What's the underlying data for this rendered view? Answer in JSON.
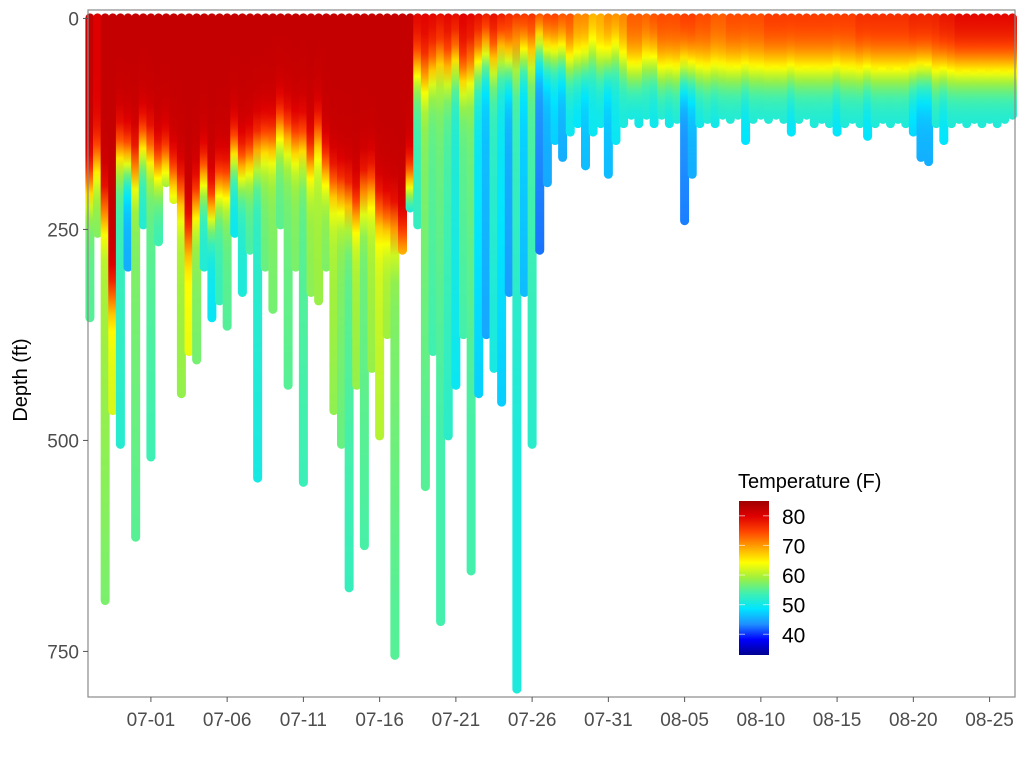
{
  "chart_data": {
    "type": "scatter",
    "title": "",
    "xlabel": "",
    "ylabel": "Depth (ft)",
    "y_reversed": true,
    "ylim": [
      -10,
      804
    ],
    "xlim": [
      "06-26T21",
      "08-26T16"
    ],
    "grid": false,
    "x_ticks": [
      "07-01",
      "07-06",
      "07-11",
      "07-16",
      "07-21",
      "07-26",
      "07-31",
      "08-05",
      "08-10",
      "08-15",
      "08-20",
      "08-25"
    ],
    "y_ticks": [
      0,
      250,
      500,
      750
    ],
    "legend": {
      "title": "Temperature (F)",
      "placement": "bottom-right",
      "ticks": [
        80,
        70,
        60,
        50,
        40
      ],
      "limits": [
        33,
        85
      ],
      "colors": [
        "#00008f",
        "#0000ff",
        "#1e90ff",
        "#00e5ff",
        "#40f0b0",
        "#9ef040",
        "#ffff00",
        "#ffa500",
        "#ff4500",
        "#e00000",
        "#a00000"
      ]
    },
    "cast_fields": [
      "date",
      "max_depth_ft",
      "surface_temp_F",
      "thermocline_depth_ft",
      "bottom_temp_F"
    ],
    "casts": [
      [
        "06-27T00",
        360,
        82,
        200,
        56
      ],
      [
        "06-27T12",
        260,
        80,
        170,
        58
      ],
      [
        "06-28T00",
        695,
        82,
        230,
        60
      ],
      [
        "06-28T12",
        470,
        82,
        330,
        63
      ],
      [
        "06-29T00",
        510,
        82,
        160,
        54
      ],
      [
        "06-29T12",
        300,
        82,
        170,
        46
      ],
      [
        "06-30T00",
        620,
        82,
        180,
        58
      ],
      [
        "06-30T12",
        250,
        82,
        150,
        52
      ],
      [
        "07-01T00",
        525,
        82,
        160,
        56
      ],
      [
        "07-01T12",
        270,
        82,
        180,
        54
      ],
      [
        "07-02T00",
        200,
        82,
        170,
        55
      ],
      [
        "07-02T12",
        220,
        82,
        190,
        58
      ],
      [
        "07-03T00",
        450,
        82,
        210,
        60
      ],
      [
        "07-03T12",
        400,
        82,
        260,
        64
      ],
      [
        "07-04T00",
        410,
        82,
        220,
        58
      ],
      [
        "07-04T12",
        300,
        82,
        190,
        52
      ],
      [
        "07-05T00",
        360,
        82,
        230,
        50
      ],
      [
        "07-05T12",
        340,
        82,
        200,
        54
      ],
      [
        "07-06T00",
        370,
        82,
        200,
        56
      ],
      [
        "07-06T12",
        260,
        82,
        160,
        50
      ],
      [
        "07-07T00",
        330,
        82,
        180,
        52
      ],
      [
        "07-07T12",
        280,
        82,
        170,
        55
      ],
      [
        "07-08T00",
        550,
        82,
        160,
        53
      ],
      [
        "07-08T12",
        300,
        82,
        150,
        57
      ],
      [
        "07-09T00",
        350,
        82,
        150,
        58
      ],
      [
        "07-09T12",
        250,
        82,
        130,
        56
      ],
      [
        "07-10T00",
        440,
        82,
        140,
        57
      ],
      [
        "07-10T12",
        300,
        82,
        150,
        58
      ],
      [
        "07-11T00",
        555,
        82,
        150,
        56
      ],
      [
        "07-11T12",
        330,
        82,
        170,
        59
      ],
      [
        "07-12T00",
        340,
        82,
        140,
        60
      ],
      [
        "07-12T12",
        300,
        82,
        180,
        58
      ],
      [
        "07-13T00",
        470,
        82,
        200,
        60
      ],
      [
        "07-13T12",
        510,
        82,
        210,
        58
      ],
      [
        "07-14T00",
        680,
        82,
        220,
        56
      ],
      [
        "07-14T12",
        440,
        82,
        230,
        60
      ],
      [
        "07-15T00",
        630,
        82,
        210,
        57
      ],
      [
        "07-15T12",
        420,
        82,
        200,
        60
      ],
      [
        "07-16T00",
        500,
        82,
        230,
        62
      ],
      [
        "07-16T12",
        380,
        82,
        240,
        60
      ],
      [
        "07-17T00",
        760,
        82,
        250,
        58
      ],
      [
        "07-17T12",
        280,
        82,
        260,
        64
      ],
      [
        "07-18T00",
        230,
        82,
        200,
        45
      ],
      [
        "07-18T12",
        250,
        80,
        60,
        54
      ],
      [
        "07-19T00",
        560,
        80,
        70,
        58
      ],
      [
        "07-19T12",
        400,
        80,
        60,
        56
      ],
      [
        "07-20T00",
        720,
        80,
        50,
        57
      ],
      [
        "07-20T12",
        500,
        80,
        60,
        55
      ],
      [
        "07-21T00",
        440,
        80,
        50,
        52
      ],
      [
        "07-21T12",
        380,
        80,
        70,
        56
      ],
      [
        "07-22T00",
        660,
        80,
        60,
        57
      ],
      [
        "07-22T12",
        450,
        80,
        50,
        50
      ],
      [
        "07-23T00",
        380,
        80,
        40,
        47
      ],
      [
        "07-23T12",
        420,
        80,
        50,
        53
      ],
      [
        "07-24T00",
        460,
        80,
        40,
        50
      ],
      [
        "07-24T12",
        330,
        78,
        50,
        46
      ],
      [
        "07-25T00",
        800,
        78,
        40,
        54
      ],
      [
        "07-25T12",
        330,
        78,
        40,
        48
      ],
      [
        "07-26T00",
        510,
        78,
        40,
        55
      ],
      [
        "07-26T12",
        280,
        78,
        30,
        44
      ],
      [
        "07-27T00",
        200,
        77,
        40,
        46
      ],
      [
        "07-27T12",
        150,
        77,
        40,
        48
      ],
      [
        "07-28T00",
        170,
        76,
        40,
        46
      ],
      [
        "07-28T12",
        140,
        75,
        50,
        50
      ],
      [
        "07-29T00",
        130,
        72,
        50,
        49
      ],
      [
        "07-29T12",
        180,
        72,
        50,
        47
      ],
      [
        "07-30T00",
        140,
        70,
        40,
        50
      ],
      [
        "07-30T12",
        130,
        70,
        50,
        50
      ],
      [
        "07-31T00",
        190,
        72,
        50,
        47
      ],
      [
        "07-31T12",
        150,
        72,
        40,
        50
      ],
      [
        "08-01T00",
        130,
        72,
        50,
        51
      ],
      [
        "08-01T12",
        120,
        74,
        60,
        50
      ],
      [
        "08-02T00",
        130,
        74,
        60,
        50
      ],
      [
        "08-02T12",
        120,
        74,
        50,
        51
      ],
      [
        "08-03T00",
        130,
        75,
        50,
        50
      ],
      [
        "08-03T12",
        120,
        75,
        60,
        51
      ],
      [
        "08-04T00",
        130,
        75,
        60,
        50
      ],
      [
        "08-04T12",
        125,
        75,
        60,
        51
      ],
      [
        "08-05T00",
        245,
        76,
        60,
        44
      ],
      [
        "08-05T12",
        190,
        76,
        60,
        46
      ],
      [
        "08-06T00",
        130,
        75,
        60,
        50
      ],
      [
        "08-06T12",
        125,
        75,
        60,
        51
      ],
      [
        "08-07T00",
        130,
        74,
        60,
        50
      ],
      [
        "08-07T12",
        120,
        74,
        60,
        51
      ],
      [
        "08-08T00",
        125,
        75,
        60,
        51
      ],
      [
        "08-08T12",
        120,
        75,
        60,
        51
      ],
      [
        "08-09T00",
        150,
        75,
        60,
        49
      ],
      [
        "08-09T12",
        125,
        75,
        60,
        51
      ],
      [
        "08-10T00",
        120,
        75,
        60,
        51
      ],
      [
        "08-10T12",
        125,
        76,
        60,
        51
      ],
      [
        "08-11T00",
        120,
        76,
        60,
        51
      ],
      [
        "08-11T12",
        125,
        76,
        60,
        51
      ],
      [
        "08-12T00",
        140,
        76,
        60,
        49
      ],
      [
        "08-12T12",
        125,
        76,
        60,
        51
      ],
      [
        "08-13T00",
        120,
        76,
        60,
        51
      ],
      [
        "08-13T12",
        130,
        76,
        60,
        51
      ],
      [
        "08-14T00",
        125,
        76,
        60,
        51
      ],
      [
        "08-14T12",
        130,
        76,
        60,
        51
      ],
      [
        "08-15T00",
        140,
        76,
        60,
        49
      ],
      [
        "08-15T12",
        130,
        76,
        60,
        51
      ],
      [
        "08-16T00",
        125,
        76,
        60,
        51
      ],
      [
        "08-16T12",
        130,
        77,
        60,
        51
      ],
      [
        "08-17T00",
        145,
        77,
        60,
        49
      ],
      [
        "08-17T12",
        130,
        77,
        60,
        51
      ],
      [
        "08-18T00",
        125,
        77,
        60,
        51
      ],
      [
        "08-18T12",
        130,
        77,
        60,
        51
      ],
      [
        "08-19T00",
        125,
        77,
        60,
        51
      ],
      [
        "08-19T12",
        130,
        77,
        60,
        51
      ],
      [
        "08-20T00",
        140,
        78,
        60,
        48
      ],
      [
        "08-20T12",
        170,
        78,
        60,
        46
      ],
      [
        "08-21T00",
        175,
        78,
        60,
        46
      ],
      [
        "08-21T12",
        130,
        78,
        60,
        51
      ],
      [
        "08-22T00",
        150,
        79,
        60,
        49
      ],
      [
        "08-22T12",
        130,
        79,
        60,
        51
      ],
      [
        "08-23T00",
        125,
        80,
        60,
        51
      ],
      [
        "08-23T12",
        130,
        80,
        60,
        51
      ],
      [
        "08-24T00",
        125,
        80,
        60,
        51
      ],
      [
        "08-24T12",
        130,
        80,
        60,
        51
      ],
      [
        "08-25T00",
        125,
        80,
        60,
        51
      ],
      [
        "08-25T12",
        130,
        80,
        60,
        51
      ],
      [
        "08-26T00",
        125,
        80,
        60,
        51
      ],
      [
        "08-26T12",
        120,
        80,
        60,
        51
      ]
    ]
  }
}
